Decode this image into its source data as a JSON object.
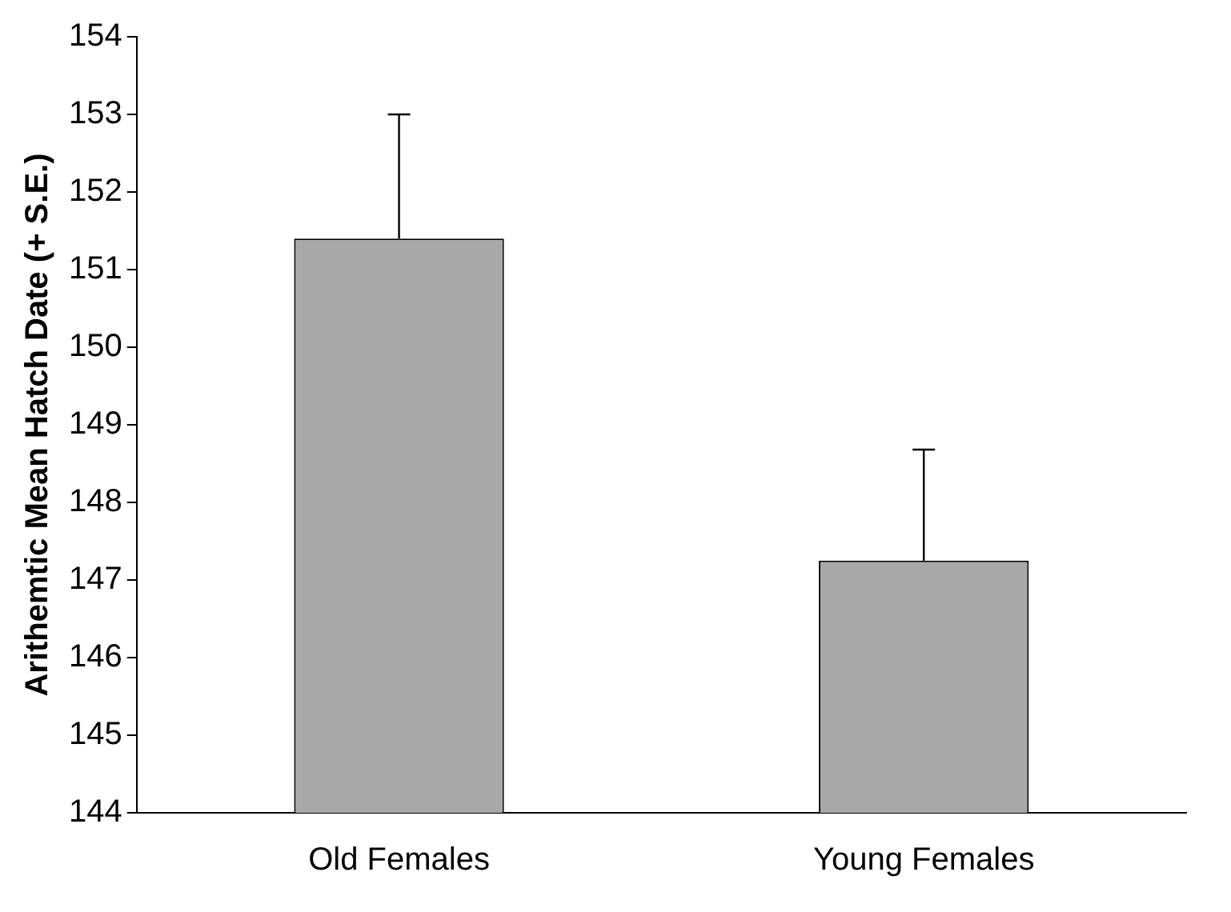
{
  "chart_data": {
    "type": "bar",
    "ylabel": "Arithemtic Mean Hatch Date (+ S.E.)",
    "categories": [
      "Old Females",
      "Young Females"
    ],
    "values": [
      151.4,
      147.25
    ],
    "errors": [
      [
        151.4,
        153.0
      ],
      [
        147.25,
        148.68
      ]
    ],
    "color": "#a8a8a8",
    "ylim": [
      144,
      154
    ],
    "yticks": [
      144,
      145,
      146,
      147,
      148,
      149,
      150,
      151,
      152,
      153,
      154
    ],
    "grid": false,
    "legend": false
  }
}
